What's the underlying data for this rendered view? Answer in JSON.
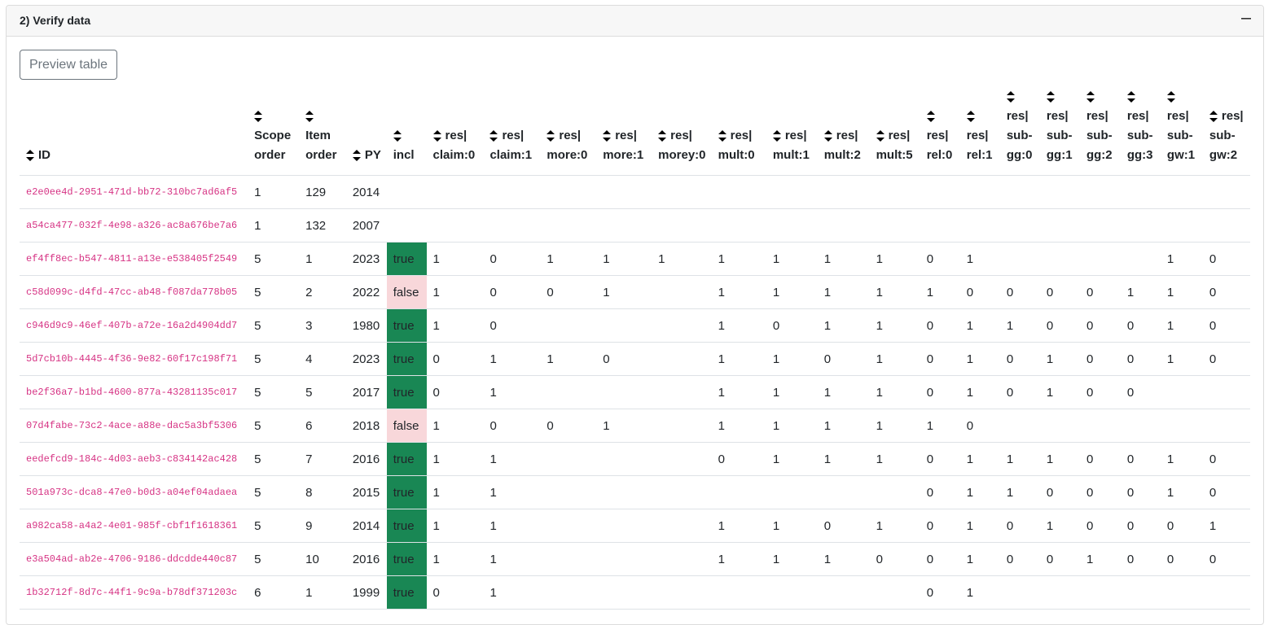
{
  "header": {
    "title": "2) Verify data"
  },
  "button": "Preview table",
  "table": {
    "columns": [
      [
        "ID"
      ],
      [
        "Scope",
        "order"
      ],
      [
        "Item",
        "order"
      ],
      [
        "PY"
      ],
      [
        "incl"
      ],
      [
        "res|",
        "claim:0"
      ],
      [
        "res|",
        "claim:1"
      ],
      [
        "res|",
        "more:0"
      ],
      [
        "res|",
        "more:1"
      ],
      [
        "res|",
        "morey:0"
      ],
      [
        "res|",
        "mult:0"
      ],
      [
        "res|",
        "mult:1"
      ],
      [
        "res|",
        "mult:2"
      ],
      [
        "res|",
        "mult:5"
      ],
      [
        "res|",
        "rel:0"
      ],
      [
        "res|",
        "rel:1"
      ],
      [
        "res|",
        "sub-",
        "gg:0"
      ],
      [
        "res|",
        "sub-",
        "gg:1"
      ],
      [
        "res|",
        "sub-",
        "gg:2"
      ],
      [
        "res|",
        "sub-",
        "gg:3"
      ],
      [
        "res|",
        "sub-",
        "gw:1"
      ],
      [
        "res|",
        "sub-",
        "gw:2"
      ]
    ],
    "rows": [
      [
        "e2e0ee4d-2951-471d-bb72-310bc7ad6af5",
        1,
        129,
        2014,
        null,
        null,
        null,
        null,
        null,
        null,
        null,
        null,
        null,
        null,
        null,
        null,
        null,
        null,
        null,
        null,
        null,
        null
      ],
      [
        "a54ca477-032f-4e98-a326-ac8a676be7a6",
        1,
        132,
        2007,
        null,
        null,
        null,
        null,
        null,
        null,
        null,
        null,
        null,
        null,
        null,
        null,
        null,
        null,
        null,
        null,
        null,
        null
      ],
      [
        "ef4ff8ec-b547-4811-a13e-e538405f2549",
        5,
        1,
        2023,
        "true",
        1,
        0,
        1,
        1,
        1,
        1,
        1,
        1,
        1,
        0,
        1,
        null,
        null,
        null,
        null,
        1,
        0
      ],
      [
        "c58d099c-d4fd-47cc-ab48-f087da778b05",
        5,
        2,
        2022,
        "false",
        1,
        0,
        0,
        1,
        null,
        1,
        1,
        1,
        1,
        1,
        0,
        0,
        0,
        0,
        1,
        1,
        0
      ],
      [
        "c946d9c9-46ef-407b-a72e-16a2d4904dd7",
        5,
        3,
        1980,
        "true",
        1,
        0,
        null,
        null,
        null,
        1,
        0,
        1,
        1,
        0,
        1,
        1,
        0,
        0,
        0,
        1,
        0
      ],
      [
        "5d7cb10b-4445-4f36-9e82-60f17c198f71",
        5,
        4,
        2023,
        "true",
        0,
        1,
        1,
        0,
        null,
        1,
        1,
        0,
        1,
        0,
        1,
        0,
        1,
        0,
        0,
        1,
        0
      ],
      [
        "be2f36a7-b1bd-4600-877a-43281135c017",
        5,
        5,
        2017,
        "true",
        0,
        1,
        null,
        null,
        null,
        1,
        1,
        1,
        1,
        0,
        1,
        0,
        1,
        0,
        0,
        null,
        null
      ],
      [
        "07d4fabe-73c2-4ace-a88e-dac5a3bf5306",
        5,
        6,
        2018,
        "false",
        1,
        0,
        0,
        1,
        null,
        1,
        1,
        1,
        1,
        1,
        0,
        null,
        null,
        null,
        null,
        null,
        null
      ],
      [
        "eedefcd9-184c-4d03-aeb3-c834142ac428",
        5,
        7,
        2016,
        "true",
        1,
        1,
        null,
        null,
        null,
        0,
        1,
        1,
        1,
        0,
        1,
        1,
        1,
        0,
        0,
        1,
        0
      ],
      [
        "501a973c-dca8-47e0-b0d3-a04ef04adaea",
        5,
        8,
        2015,
        "true",
        1,
        1,
        null,
        null,
        null,
        null,
        null,
        null,
        null,
        0,
        1,
        1,
        0,
        0,
        0,
        1,
        0
      ],
      [
        "a982ca58-a4a2-4e01-985f-cbf1f1618361",
        5,
        9,
        2014,
        "true",
        1,
        1,
        null,
        null,
        null,
        1,
        1,
        0,
        1,
        0,
        1,
        0,
        1,
        0,
        0,
        0,
        1
      ],
      [
        "e3a504ad-ab2e-4706-9186-ddcdde440c87",
        5,
        10,
        2016,
        "true",
        1,
        1,
        null,
        null,
        null,
        1,
        1,
        1,
        0,
        0,
        1,
        0,
        0,
        1,
        0,
        0,
        0
      ],
      [
        "1b32712f-8d7c-44f1-9c9a-b78df371203c",
        6,
        1,
        1999,
        "true",
        0,
        1,
        null,
        null,
        null,
        null,
        null,
        null,
        null,
        0,
        1,
        null,
        null,
        null,
        null,
        null,
        null
      ]
    ]
  }
}
